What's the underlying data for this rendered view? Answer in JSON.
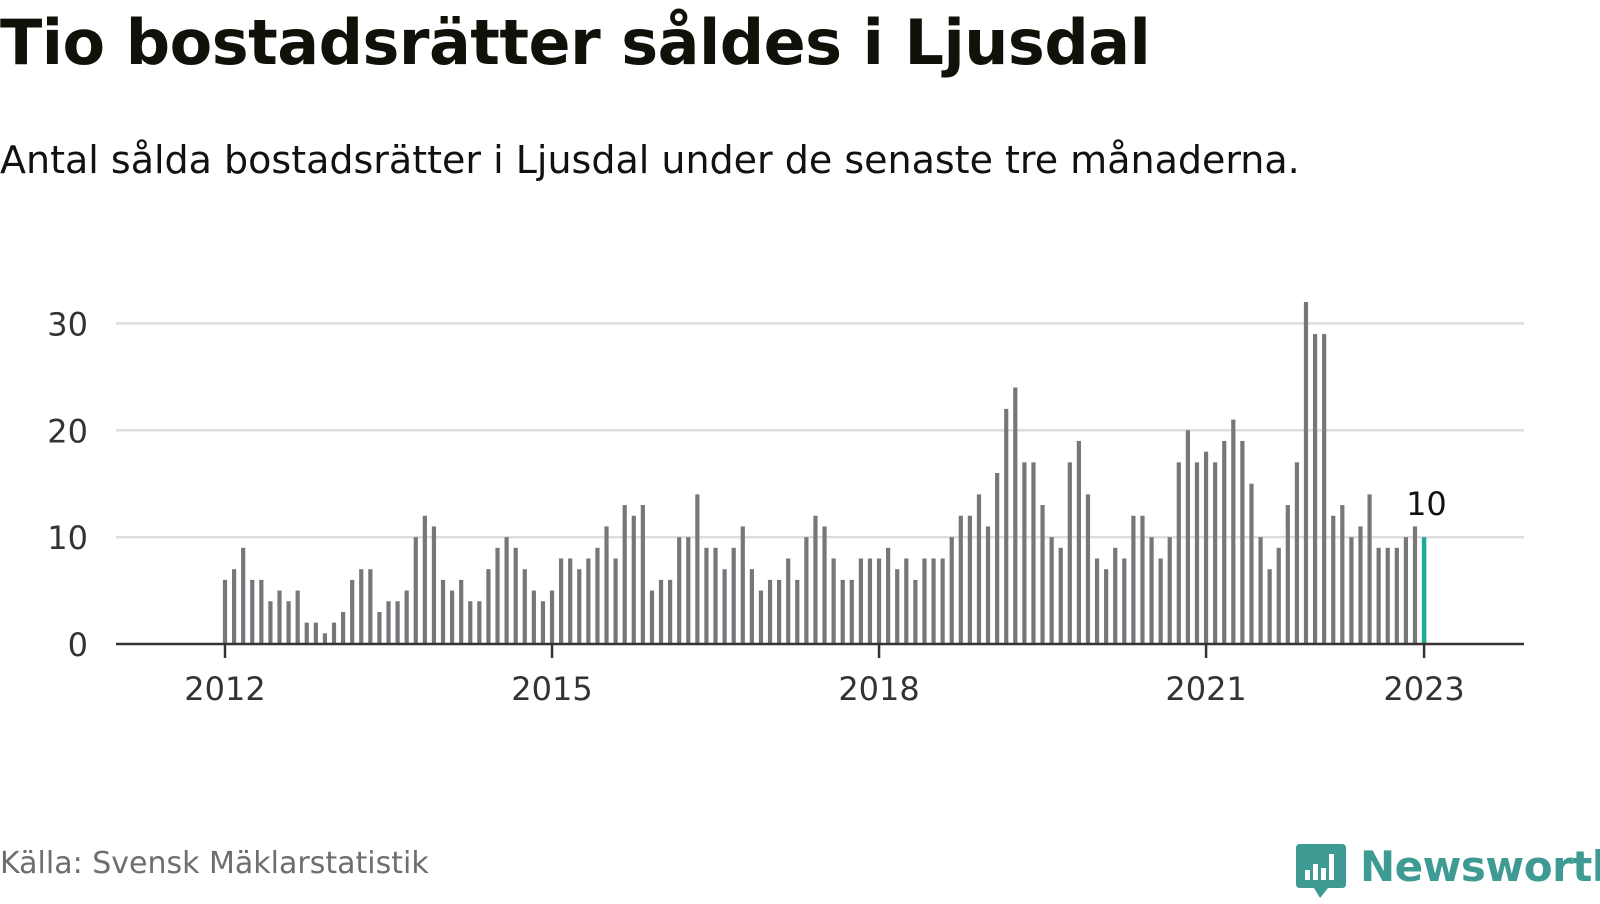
{
  "title": "Tio bostadsrätter såldes i Ljusdal",
  "subtitle": "Antal sålda bostadsrätter i Ljusdal under de senaste tre månaderna.",
  "source": "Källa: Svensk Mäklarstatistik",
  "brand": {
    "name": "Newsworthy",
    "icon": "newsworthy-logo-icon"
  },
  "colors": {
    "bar": "#77777b",
    "highlight": "#20a89c",
    "grid": "#dddddd",
    "axis": "#333333",
    "brand": "#3d9b94"
  },
  "chart_data": {
    "type": "bar",
    "x_start": "2012-01",
    "x_step": "month",
    "xlim": [
      "2011-01",
      "2023-12"
    ],
    "ylim": [
      0,
      32
    ],
    "yticks": [
      0,
      10,
      20,
      30
    ],
    "xticks": [
      "2012",
      "2015",
      "2018",
      "2021",
      "2023"
    ],
    "grid": true,
    "highlight_last": true,
    "last_label": "10",
    "values": [
      6,
      7,
      9,
      6,
      6,
      4,
      5,
      4,
      5,
      2,
      2,
      1,
      2,
      3,
      6,
      7,
      7,
      3,
      4,
      4,
      5,
      10,
      12,
      11,
      6,
      5,
      6,
      4,
      4,
      7,
      9,
      10,
      9,
      7,
      5,
      4,
      5,
      8,
      8,
      7,
      8,
      9,
      11,
      8,
      13,
      12,
      13,
      5,
      6,
      6,
      10,
      10,
      14,
      9,
      9,
      7,
      9,
      11,
      7,
      5,
      6,
      6,
      8,
      6,
      10,
      12,
      11,
      8,
      6,
      6,
      8,
      8,
      8,
      9,
      7,
      8,
      6,
      8,
      8,
      8,
      10,
      12,
      12,
      14,
      11,
      16,
      22,
      24,
      17,
      17,
      13,
      10,
      9,
      17,
      19,
      14,
      8,
      7,
      9,
      8,
      12,
      12,
      10,
      8,
      10,
      17,
      20,
      17,
      18,
      17,
      19,
      21,
      19,
      15,
      10,
      7,
      9,
      13,
      17,
      32,
      29,
      29,
      12,
      13,
      10,
      11,
      14,
      9,
      9,
      9,
      10,
      11,
      10
    ]
  }
}
